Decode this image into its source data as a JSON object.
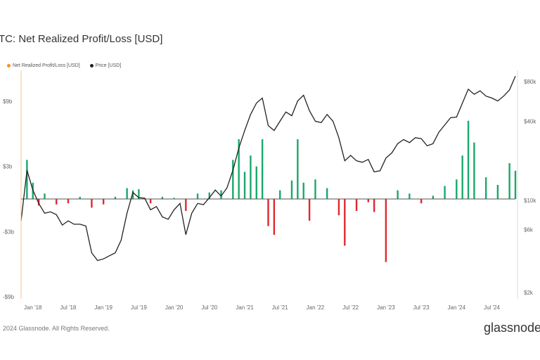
{
  "header": {
    "title": "TC: Net Realized Profit/Loss [USD]"
  },
  "legend": {
    "items": [
      {
        "label": "Net Realized Profit/Loss [USD]",
        "color": "#f7931a"
      },
      {
        "label": "Price [USD]",
        "color": "#222222"
      }
    ]
  },
  "footer": {
    "copyright": "2024 Glassnode. All Rights Reserved.",
    "brand": "glassnode"
  },
  "chart_data": {
    "type": "bar",
    "x_ticks": [
      "Jan '18",
      "Jul '18",
      "Jan '19",
      "Jul '19",
      "Jan '20",
      "Jul '20",
      "Jan '21",
      "Jul '21",
      "Jan '22",
      "Jul '22",
      "Jan '23",
      "Jul '23",
      "Jan '24",
      "Jul '24"
    ],
    "y_left_ticks": [
      "$9b",
      "$3b",
      "-$3b",
      "-$9b"
    ],
    "y_left_values": [
      9,
      3,
      -3,
      -9
    ],
    "y_left_range": [
      -9,
      10
    ],
    "y_right_ticks": [
      "$80k",
      "$40k",
      "$10k",
      "$6k",
      "$2k"
    ],
    "y_right_values": [
      80000,
      40000,
      10000,
      6000,
      2000
    ],
    "y_right_scale": "log",
    "x_range": [
      "2017-11",
      "2024-11"
    ],
    "series": [
      {
        "name": "Net Realized Profit/Loss [USD]",
        "unit": "billion USD",
        "positive_color": "#1aa86a",
        "negative_color": "#e0282e",
        "x": [
          "2017-12",
          "2018-01",
          "2018-02",
          "2018-03",
          "2018-05",
          "2018-07",
          "2018-09",
          "2018-11",
          "2019-01",
          "2019-03",
          "2019-05",
          "2019-06",
          "2019-07",
          "2019-09",
          "2019-11",
          "2020-01",
          "2020-03",
          "2020-05",
          "2020-07",
          "2020-09",
          "2020-11",
          "2020-12",
          "2021-01",
          "2021-02",
          "2021-03",
          "2021-04",
          "2021-05",
          "2021-06",
          "2021-07",
          "2021-09",
          "2021-10",
          "2021-11",
          "2021-12",
          "2022-01",
          "2022-03",
          "2022-05",
          "2022-06",
          "2022-08",
          "2022-10",
          "2022-11",
          "2023-01",
          "2023-03",
          "2023-05",
          "2023-07",
          "2023-09",
          "2023-11",
          "2024-01",
          "2024-02",
          "2024-03",
          "2024-04",
          "2024-06",
          "2024-08",
          "2024-10",
          "2024-11"
        ],
        "values": [
          3.6,
          1.5,
          -0.6,
          0.5,
          -0.5,
          -0.4,
          0.2,
          -0.8,
          -0.5,
          0.2,
          1.0,
          0.8,
          0.9,
          -0.4,
          0.2,
          0.1,
          -1.1,
          0.5,
          0.6,
          0.8,
          3.6,
          5.5,
          2.5,
          4.0,
          3.0,
          5.5,
          -2.5,
          -3.3,
          0.8,
          1.7,
          5.5,
          1.5,
          -2.0,
          1.8,
          1.0,
          -1.5,
          -4.3,
          -1.1,
          -0.3,
          -1.2,
          -5.8,
          0.8,
          0.5,
          -0.4,
          0.3,
          1.2,
          1.8,
          4.0,
          7.2,
          5.2,
          2.0,
          1.3,
          3.3,
          2.6
        ]
      },
      {
        "name": "Price [USD]",
        "unit": "USD",
        "color": "#222222",
        "x": [
          "2017-11",
          "2017-12",
          "2018-01",
          "2018-02",
          "2018-03",
          "2018-04",
          "2018-05",
          "2018-06",
          "2018-07",
          "2018-08",
          "2018-09",
          "2018-10",
          "2018-11",
          "2018-12",
          "2019-01",
          "2019-02",
          "2019-03",
          "2019-04",
          "2019-05",
          "2019-06",
          "2019-07",
          "2019-08",
          "2019-09",
          "2019-10",
          "2019-11",
          "2019-12",
          "2020-01",
          "2020-02",
          "2020-03",
          "2020-04",
          "2020-05",
          "2020-06",
          "2020-07",
          "2020-08",
          "2020-09",
          "2020-10",
          "2020-11",
          "2020-12",
          "2021-01",
          "2021-02",
          "2021-03",
          "2021-04",
          "2021-05",
          "2021-06",
          "2021-07",
          "2021-08",
          "2021-09",
          "2021-10",
          "2021-11",
          "2021-12",
          "2022-01",
          "2022-02",
          "2022-03",
          "2022-04",
          "2022-05",
          "2022-06",
          "2022-07",
          "2022-08",
          "2022-09",
          "2022-10",
          "2022-11",
          "2022-12",
          "2023-01",
          "2023-02",
          "2023-03",
          "2023-04",
          "2023-05",
          "2023-06",
          "2023-07",
          "2023-08",
          "2023-09",
          "2023-10",
          "2023-11",
          "2023-12",
          "2024-01",
          "2024-02",
          "2024-03",
          "2024-04",
          "2024-05",
          "2024-06",
          "2024-07",
          "2024-08",
          "2024-09",
          "2024-10",
          "2024-11"
        ],
        "values": [
          7000,
          17000,
          12000,
          9500,
          8000,
          8200,
          7800,
          6500,
          7000,
          6600,
          6600,
          6400,
          4000,
          3500,
          3600,
          3800,
          4000,
          5000,
          8000,
          11500,
          10500,
          10400,
          8500,
          9000,
          7500,
          7200,
          8500,
          9500,
          5500,
          8000,
          9500,
          9300,
          10500,
          12000,
          10800,
          12500,
          17000,
          25000,
          34000,
          45000,
          55000,
          60000,
          37000,
          34000,
          40000,
          47000,
          44000,
          57000,
          63000,
          48000,
          40000,
          39000,
          45000,
          40000,
          30000,
          20000,
          22000,
          20000,
          19500,
          20500,
          16500,
          16800,
          21000,
          23000,
          27000,
          29000,
          27500,
          30000,
          29500,
          26000,
          27000,
          33000,
          37500,
          42500,
          43000,
          55000,
          70000,
          64000,
          68000,
          62000,
          60000,
          57000,
          62000,
          69000,
          88000
        ]
      }
    ],
    "grid": false,
    "legend_position": "top-left"
  }
}
